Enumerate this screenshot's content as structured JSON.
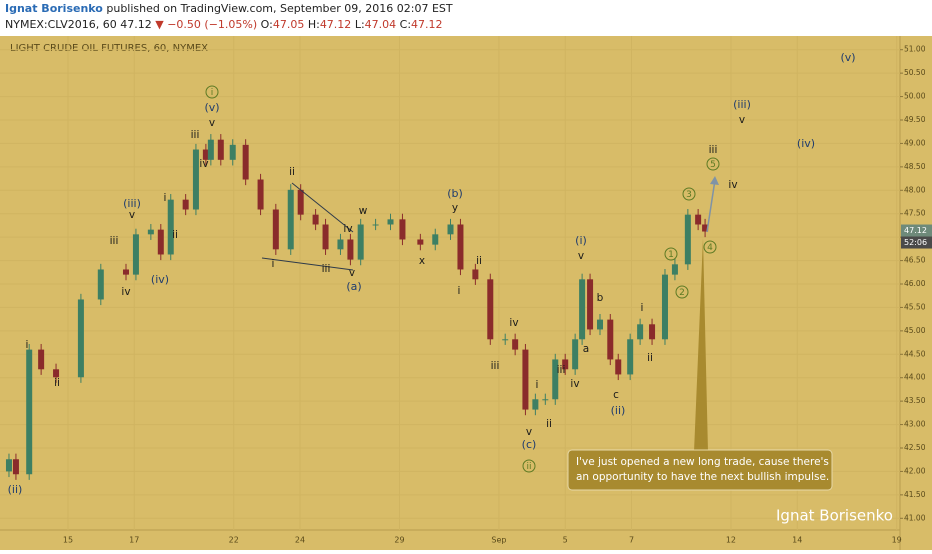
{
  "header": {
    "author": "Ignat Borisenko",
    "published": "published on TradingView.com, September 09, 2016 02:07 EST",
    "symbol": "NYMEX:CLV2016, 60",
    "last": "47.12",
    "change": "▼ −0.50 (−1.05%)",
    "o_label": "O:",
    "o": "47.05",
    "h_label": "H:",
    "h": "47.12",
    "l_label": "L:",
    "l": "47.04",
    "c_label": "C:",
    "c": "47.12"
  },
  "chart_data": {
    "type": "candlestick",
    "title": "LIGHT CRUDE OIL FUTURES, 60, NYMEX",
    "up_color": "#3d7f63",
    "down_color": "#8a2b2b",
    "grid": true,
    "x": [
      -1.78,
      -1.57,
      -1.17,
      -0.81,
      -0.36,
      0.39,
      0.99,
      1.75,
      2.05,
      2.5,
      2.8,
      3.1,
      3.55,
      3.86,
      4.16,
      4.31,
      4.61,
      4.97,
      5.36,
      5.81,
      6.27,
      6.72,
      7.02,
      7.47,
      7.77,
      8.22,
      8.52,
      8.83,
      9.28,
      9.73,
      10.09,
      10.63,
      11.08,
      11.54,
      11.84,
      12.29,
      12.74,
      13.19,
      13.49,
      13.8,
      14.1,
      14.4,
      14.7,
      15.0,
      15.3,
      15.51,
      15.75,
      16.05,
      16.36,
      16.6,
      16.96,
      17.26,
      17.62,
      18.01,
      18.31,
      18.7,
      19.01,
      19.22
    ],
    "open": [
      42.0,
      42.26,
      41.94,
      44.6,
      44.18,
      44.01,
      45.67,
      46.31,
      46.2,
      47.06,
      47.16,
      46.63,
      47.8,
      47.59,
      48.87,
      48.65,
      49.08,
      48.65,
      48.97,
      48.23,
      47.59,
      46.74,
      48.01,
      47.48,
      47.27,
      46.74,
      46.95,
      46.52,
      47.27,
      47.27,
      47.38,
      46.95,
      46.84,
      47.06,
      47.27,
      46.31,
      46.1,
      44.82,
      44.82,
      44.6,
      43.32,
      43.54,
      43.54,
      44.39,
      44.18,
      44.82,
      46.1,
      45.03,
      45.24,
      44.39,
      44.07,
      44.82,
      45.14,
      44.82,
      46.2,
      46.42,
      47.48,
      47.27
    ],
    "high": [
      42.38,
      42.38,
      44.72,
      44.72,
      44.3,
      45.79,
      46.43,
      46.43,
      47.18,
      47.28,
      47.28,
      47.92,
      47.92,
      48.99,
      48.99,
      49.2,
      49.2,
      49.09,
      49.09,
      48.35,
      47.71,
      48.13,
      48.13,
      47.6,
      47.39,
      47.07,
      47.07,
      47.39,
      47.39,
      47.5,
      47.5,
      47.07,
      47.18,
      47.39,
      47.39,
      46.43,
      46.22,
      44.94,
      44.94,
      44.72,
      43.66,
      43.66,
      44.51,
      44.51,
      44.94,
      46.22,
      46.22,
      45.36,
      45.36,
      44.51,
      44.94,
      45.26,
      45.26,
      46.32,
      46.54,
      47.6,
      47.6,
      47.39
    ],
    "low": [
      41.88,
      41.82,
      41.82,
      44.06,
      43.89,
      43.89,
      45.55,
      46.08,
      46.08,
      46.94,
      46.51,
      46.51,
      47.47,
      47.47,
      48.53,
      48.53,
      48.53,
      48.53,
      48.11,
      47.47,
      46.62,
      46.62,
      47.36,
      47.15,
      46.62,
      46.62,
      46.4,
      46.4,
      47.15,
      47.15,
      46.83,
      46.72,
      46.72,
      46.94,
      46.19,
      45.98,
      44.7,
      44.7,
      44.48,
      43.2,
      43.2,
      43.42,
      43.42,
      44.06,
      44.06,
      44.7,
      44.91,
      44.91,
      44.27,
      43.95,
      43.95,
      44.7,
      44.7,
      44.7,
      46.08,
      46.3,
      47.15,
      47.0
    ],
    "close": [
      42.26,
      41.94,
      44.6,
      44.18,
      44.01,
      45.67,
      46.31,
      46.2,
      47.06,
      47.16,
      46.63,
      47.8,
      47.59,
      48.87,
      48.65,
      49.08,
      48.65,
      48.97,
      48.23,
      47.59,
      46.74,
      48.01,
      47.48,
      47.27,
      46.74,
      46.95,
      46.52,
      47.27,
      47.27,
      47.38,
      46.95,
      46.84,
      47.06,
      47.27,
      46.31,
      46.1,
      44.82,
      44.82,
      44.6,
      43.32,
      43.54,
      43.54,
      44.39,
      44.18,
      44.82,
      46.1,
      45.03,
      45.24,
      44.39,
      44.07,
      44.82,
      45.14,
      44.82,
      46.2,
      46.42,
      47.48,
      47.27,
      47.12
    ],
    "xlim": [
      -1.9,
      25.1
    ],
    "xticks": [
      {
        "value": 0,
        "label": "15"
      },
      {
        "value": 2,
        "label": "17"
      },
      {
        "value": 5,
        "label": "22"
      },
      {
        "value": 7,
        "label": "24"
      },
      {
        "value": 10,
        "label": "29"
      },
      {
        "value": 13,
        "label": "Sep"
      },
      {
        "value": 15,
        "label": "5"
      },
      {
        "value": 17,
        "label": "7"
      },
      {
        "value": 20,
        "label": "12"
      },
      {
        "value": 22,
        "label": "14"
      },
      {
        "value": 25,
        "label": "19"
      }
    ],
    "ylim": [
      40.75,
      51.25
    ],
    "yticks": [
      {
        "value": 41,
        "label": "41.00"
      },
      {
        "value": 41.5,
        "label": "41.50"
      },
      {
        "value": 42,
        "label": "42.00"
      },
      {
        "value": 42.5,
        "label": "42.50"
      },
      {
        "value": 43,
        "label": "43.00"
      },
      {
        "value": 43.5,
        "label": "43.50"
      },
      {
        "value": 44,
        "label": "44.00"
      },
      {
        "value": 44.5,
        "label": "44.50"
      },
      {
        "value": 45,
        "label": "45.00"
      },
      {
        "value": 45.5,
        "label": "45.50"
      },
      {
        "value": 46,
        "label": "46.00"
      },
      {
        "value": 46.5,
        "label": "46.50"
      },
      {
        "value": 47,
        "label": "47.00"
      },
      {
        "value": 47.5,
        "label": "47.50"
      },
      {
        "value": 48,
        "label": "48.00"
      },
      {
        "value": 48.5,
        "label": "48.50"
      },
      {
        "value": 49,
        "label": "49.00"
      },
      {
        "value": 49.5,
        "label": "49.50"
      },
      {
        "value": 50,
        "label": "50.00"
      },
      {
        "value": 50.5,
        "label": "50.50"
      },
      {
        "value": 51,
        "label": "51.00"
      }
    ],
    "price_tag": "47.12",
    "countdown": "52:06",
    "wave_labels": [
      {
        "text": "(ii)",
        "style": "major"
      },
      {
        "text": "i",
        "style": "minor"
      },
      {
        "text": "ii",
        "style": "minor"
      },
      {
        "text": "iii",
        "style": "minor"
      },
      {
        "text": "(iii)",
        "style": "major"
      },
      {
        "text": "v",
        "style": "minor"
      },
      {
        "text": "iv",
        "style": "minor"
      },
      {
        "text": "(iv)",
        "style": "major"
      },
      {
        "text": "i",
        "style": "minor"
      },
      {
        "text": "ii",
        "style": "minor"
      },
      {
        "text": "iii",
        "style": "minor"
      },
      {
        "text": "iv",
        "style": "minor"
      },
      {
        "text": "(v)",
        "style": "major"
      },
      {
        "text": "v",
        "style": "minor"
      },
      {
        "text": "i",
        "style": "circled"
      },
      {
        "text": "ii",
        "style": "minor"
      },
      {
        "text": "i",
        "style": "minor"
      },
      {
        "text": "iii",
        "style": "minor"
      },
      {
        "text": "iv",
        "style": "minor"
      },
      {
        "text": "w",
        "style": "minor"
      },
      {
        "text": "v",
        "style": "minor"
      },
      {
        "text": "(a)",
        "style": "major"
      },
      {
        "text": "x",
        "style": "minor"
      },
      {
        "text": "y",
        "style": "minor"
      },
      {
        "text": "(b)",
        "style": "major"
      },
      {
        "text": "i",
        "style": "minor"
      },
      {
        "text": "ii",
        "style": "minor"
      },
      {
        "text": "iii",
        "style": "minor"
      },
      {
        "text": "iv",
        "style": "minor"
      },
      {
        "text": "i",
        "style": "minor"
      },
      {
        "text": "ii",
        "style": "minor"
      },
      {
        "text": "v",
        "style": "minor"
      },
      {
        "text": "(c)",
        "style": "major"
      },
      {
        "text": "ii",
        "style": "circled"
      },
      {
        "text": "iii",
        "style": "minor"
      },
      {
        "text": "iv",
        "style": "minor"
      },
      {
        "text": "(i)",
        "style": "major"
      },
      {
        "text": "v",
        "style": "minor"
      },
      {
        "text": "b",
        "style": "minor"
      },
      {
        "text": "a",
        "style": "minor"
      },
      {
        "text": "c",
        "style": "minor"
      },
      {
        "text": "(ii)",
        "style": "major"
      },
      {
        "text": "i",
        "style": "minor"
      },
      {
        "text": "ii",
        "style": "minor"
      },
      {
        "text": "1",
        "style": "circled"
      },
      {
        "text": "2",
        "style": "circled"
      },
      {
        "text": "3",
        "style": "circled"
      },
      {
        "text": "4",
        "style": "circled"
      },
      {
        "text": "5",
        "style": "circled"
      },
      {
        "text": "iii",
        "style": "minor"
      },
      {
        "text": "iv",
        "style": "minor"
      },
      {
        "text": "(iii)",
        "style": "major"
      },
      {
        "text": "v",
        "style": "minor"
      },
      {
        "text": "(iv)",
        "style": "major"
      },
      {
        "text": "(v)",
        "style": "major"
      }
    ],
    "note_lines": [
      "I've just opened a new long trade, cause there's",
      "an opportunity to have the next bullish impulse."
    ],
    "watermark": "Ignat Borisenko"
  }
}
